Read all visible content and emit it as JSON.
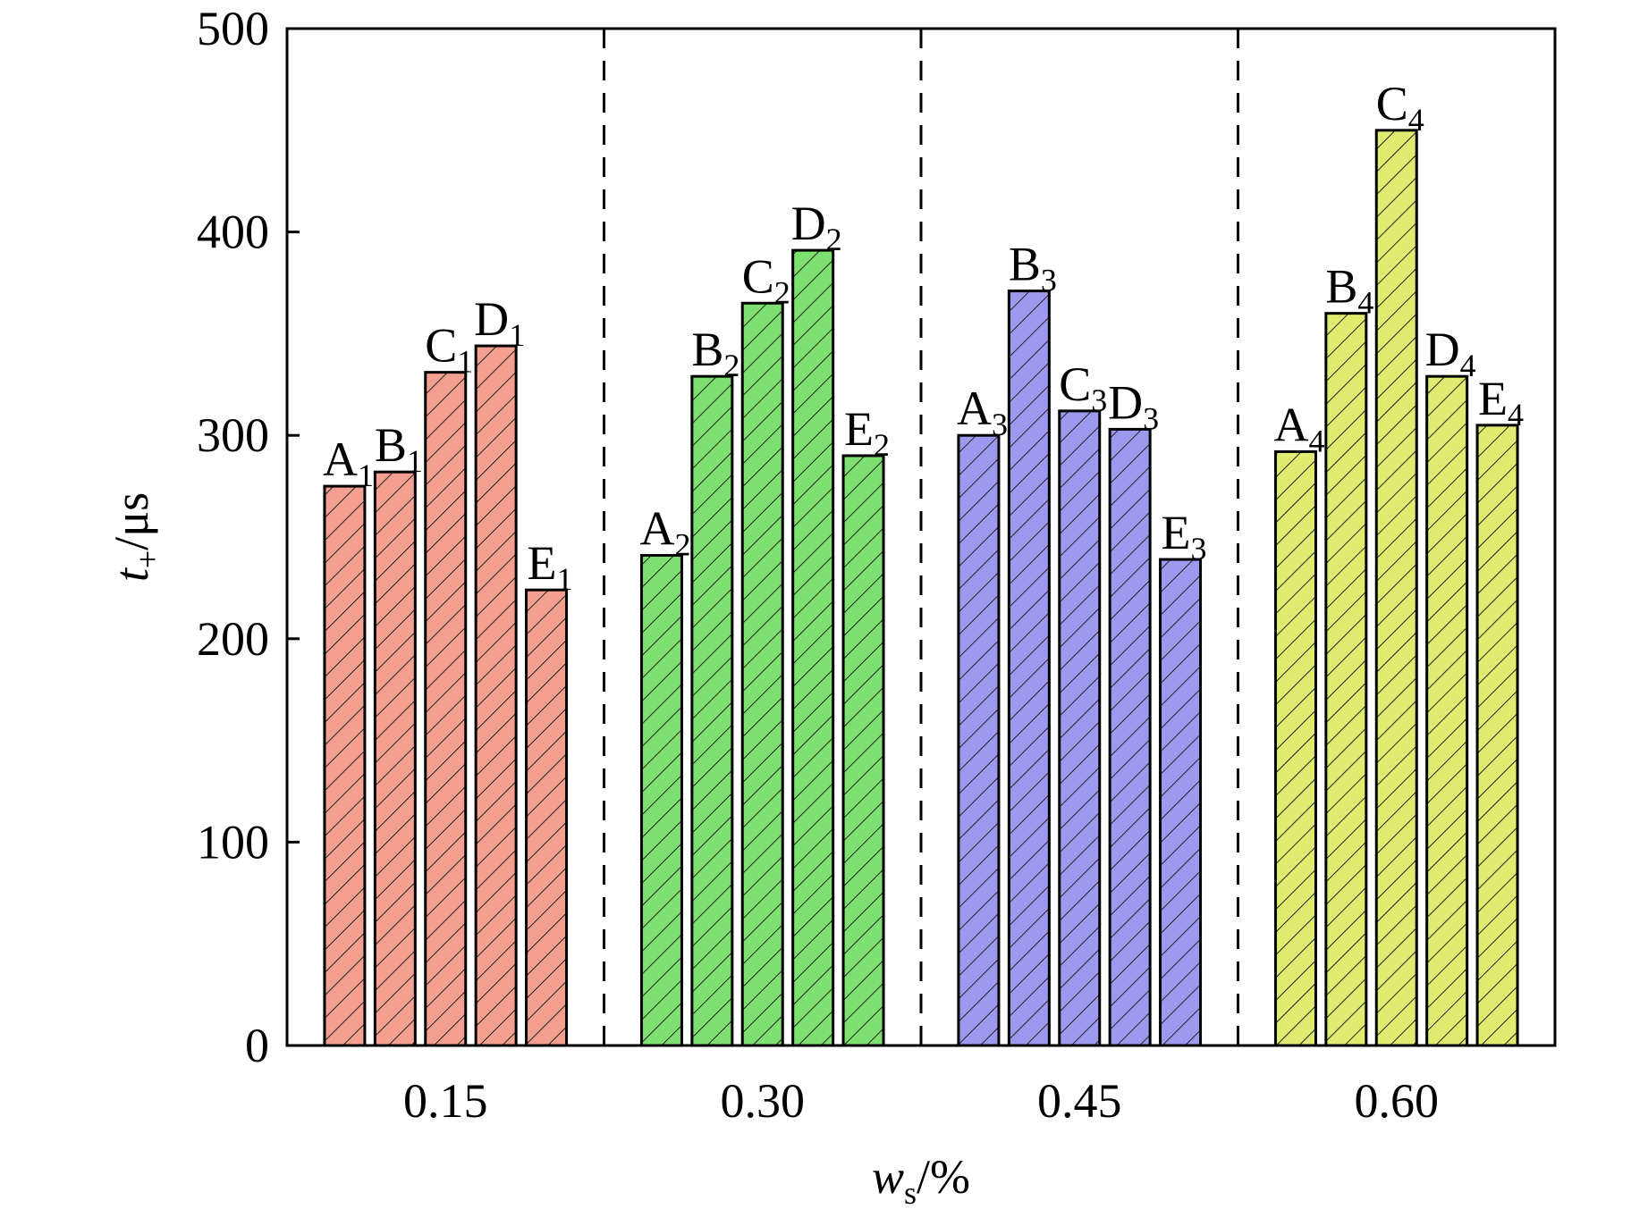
{
  "chart_data": {
    "type": "bar",
    "xlabel": "w",
    "xlabel_sub": "s",
    "xlabel_unit": "/%",
    "ylabel": "t",
    "ylabel_sub": "+",
    "ylabel_unit": "/μs",
    "ylim": [
      0,
      500
    ],
    "yticks": [
      0,
      100,
      200,
      300,
      400,
      500
    ],
    "categories": [
      "0.15",
      "0.30",
      "0.45",
      "0.60"
    ],
    "grid": false,
    "group_separators": "dashed",
    "groups": [
      {
        "category": "0.15",
        "color": "#f4a090",
        "bars": [
          {
            "letter": "A",
            "sub": "1",
            "value": 275
          },
          {
            "letter": "B",
            "sub": "1",
            "value": 282
          },
          {
            "letter": "C",
            "sub": "1",
            "value": 331
          },
          {
            "letter": "D",
            "sub": "1",
            "value": 344
          },
          {
            "letter": "E",
            "sub": "1",
            "value": 224
          }
        ]
      },
      {
        "category": "0.30",
        "color": "#7ee070",
        "bars": [
          {
            "letter": "A",
            "sub": "2",
            "value": 241
          },
          {
            "letter": "B",
            "sub": "2",
            "value": 329
          },
          {
            "letter": "C",
            "sub": "2",
            "value": 365
          },
          {
            "letter": "D",
            "sub": "2",
            "value": 391
          },
          {
            "letter": "E",
            "sub": "2",
            "value": 290
          }
        ]
      },
      {
        "category": "0.45",
        "color": "#9c9aee",
        "bars": [
          {
            "letter": "A",
            "sub": "3",
            "value": 300
          },
          {
            "letter": "B",
            "sub": "3",
            "value": 371
          },
          {
            "letter": "C",
            "sub": "3",
            "value": 312
          },
          {
            "letter": "D",
            "sub": "3",
            "value": 303
          },
          {
            "letter": "E",
            "sub": "3",
            "value": 239
          }
        ]
      },
      {
        "category": "0.60",
        "color": "#e0ec70",
        "bars": [
          {
            "letter": "A",
            "sub": "4",
            "value": 292
          },
          {
            "letter": "B",
            "sub": "4",
            "value": 360
          },
          {
            "letter": "C",
            "sub": "4",
            "value": 450
          },
          {
            "letter": "D",
            "sub": "4",
            "value": 329
          },
          {
            "letter": "E",
            "sub": "4",
            "value": 305
          }
        ]
      }
    ]
  }
}
